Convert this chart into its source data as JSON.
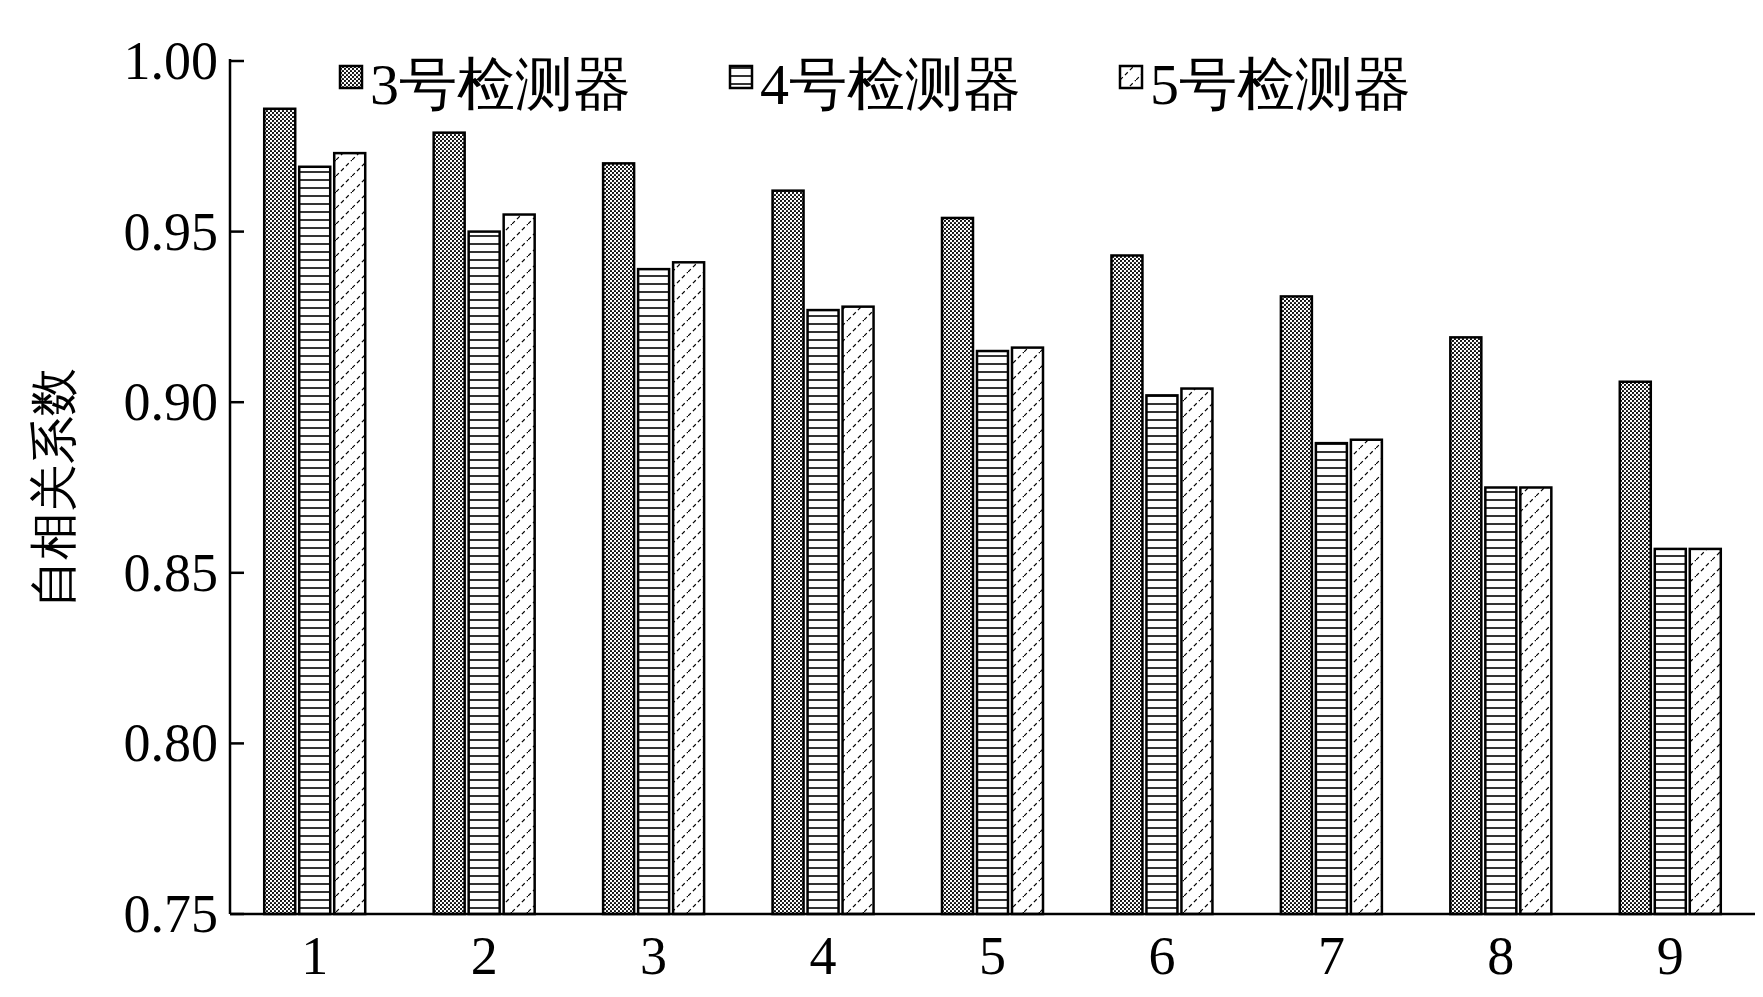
{
  "chart_data": {
    "type": "bar",
    "ylabel": "自相关系数",
    "categories": [
      "1",
      "2",
      "3",
      "4",
      "5",
      "6",
      "7",
      "8",
      "9"
    ],
    "series": [
      {
        "name": "3号检测器",
        "color": "#000000",
        "values": [
          0.986,
          0.979,
          0.97,
          0.962,
          0.954,
          0.943,
          0.931,
          0.919,
          0.906
        ]
      },
      {
        "name": "4号检测器",
        "color": "#000000",
        "values": [
          0.969,
          0.95,
          0.939,
          0.927,
          0.915,
          0.902,
          0.888,
          0.875,
          0.857
        ]
      },
      {
        "name": "5号检测器",
        "color": "#000000",
        "values": [
          0.973,
          0.955,
          0.941,
          0.928,
          0.916,
          0.904,
          0.889,
          0.875,
          0.857
        ]
      }
    ],
    "ylim": [
      0.75,
      1.0
    ],
    "yticks": [
      {
        "value": 0.75,
        "label": "0.75"
      },
      {
        "value": 0.8,
        "label": "0.80"
      },
      {
        "value": 0.85,
        "label": "0.85"
      },
      {
        "value": 0.9,
        "label": "0.90"
      },
      {
        "value": 0.95,
        "label": "0.95"
      },
      {
        "value": 1.0,
        "label": "1.00"
      }
    ],
    "legend": "top",
    "grid": false
  }
}
